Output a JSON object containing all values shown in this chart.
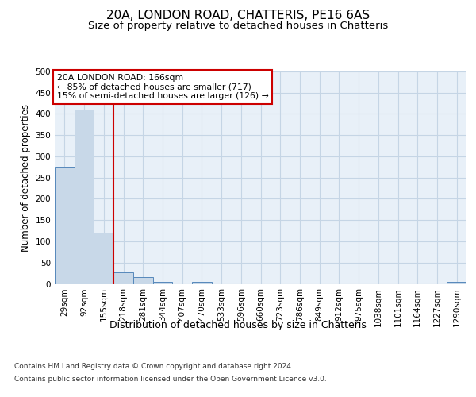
{
  "title": "20A, LONDON ROAD, CHATTERIS, PE16 6AS",
  "subtitle": "Size of property relative to detached houses in Chatteris",
  "xlabel": "Distribution of detached houses by size in Chatteris",
  "ylabel": "Number of detached properties",
  "categories": [
    "29sqm",
    "92sqm",
    "155sqm",
    "218sqm",
    "281sqm",
    "344sqm",
    "407sqm",
    "470sqm",
    "533sqm",
    "596sqm",
    "660sqm",
    "723sqm",
    "786sqm",
    "849sqm",
    "912sqm",
    "975sqm",
    "1038sqm",
    "1101sqm",
    "1164sqm",
    "1227sqm",
    "1290sqm"
  ],
  "bar_heights": [
    275,
    410,
    120,
    28,
    15,
    5,
    0,
    5,
    0,
    0,
    0,
    0,
    0,
    0,
    0,
    0,
    0,
    0,
    0,
    0,
    5
  ],
  "bar_color": "#c8d8e8",
  "bar_edge_color": "#5588bb",
  "property_line_x": 2.5,
  "property_line_color": "#cc0000",
  "ylim": [
    0,
    500
  ],
  "yticks": [
    0,
    50,
    100,
    150,
    200,
    250,
    300,
    350,
    400,
    450,
    500
  ],
  "annotation_text": "20A LONDON ROAD: 166sqm\n← 85% of detached houses are smaller (717)\n15% of semi-detached houses are larger (126) →",
  "annotation_box_color": "#ffffff",
  "annotation_box_edge": "#cc0000",
  "footer_line1": "Contains HM Land Registry data © Crown copyright and database right 2024.",
  "footer_line2": "Contains public sector information licensed under the Open Government Licence v3.0.",
  "background_color": "#e8f0f8",
  "grid_color": "#c5d5e5",
  "title_fontsize": 11,
  "subtitle_fontsize": 9.5,
  "tick_fontsize": 7.5,
  "ylabel_fontsize": 8.5,
  "xlabel_fontsize": 9
}
